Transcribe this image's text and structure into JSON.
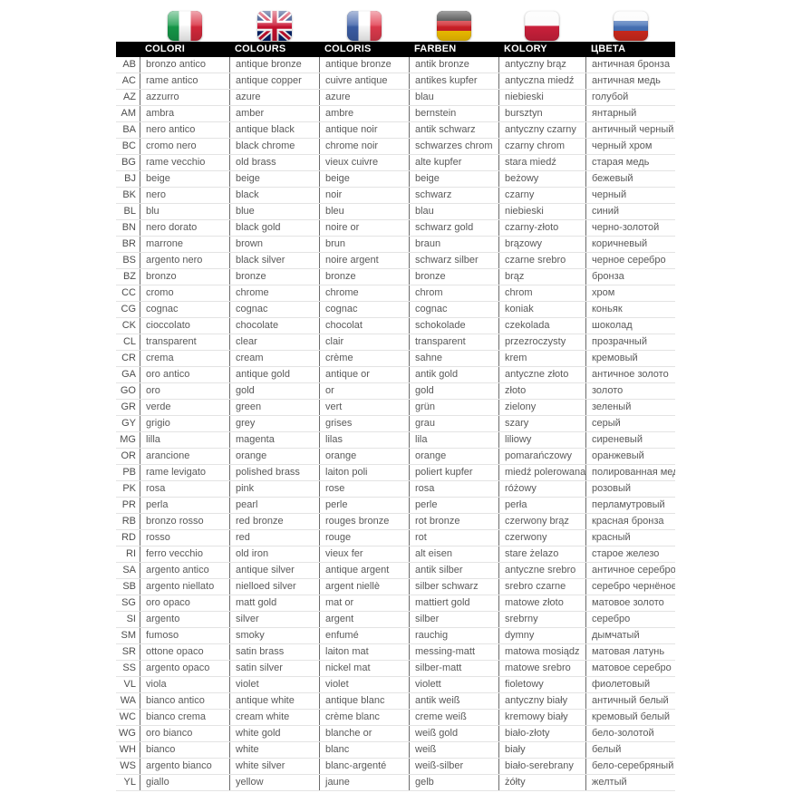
{
  "colors": {
    "header_bg": "#000000",
    "header_text": "#ffffff",
    "cell_text": "#595959",
    "code_text": "#4d4d4d",
    "divider": "#6b6b6b",
    "row_line": "#e3e3e3"
  },
  "flags": [
    {
      "id": "italy",
      "icon": "italy-flag-icon",
      "direction": "vertical",
      "colors": [
        "#169b4a",
        "#ffffff",
        "#d8293c"
      ]
    },
    {
      "id": "uk",
      "icon": "uk-flag-icon",
      "direction": "union-jack",
      "colors": [
        "#012169",
        "#ffffff",
        "#C8102E"
      ]
    },
    {
      "id": "france",
      "icon": "france-flag-icon",
      "direction": "vertical",
      "colors": [
        "#3c5fa8",
        "#ffffff",
        "#e23b4e"
      ]
    },
    {
      "id": "germany",
      "icon": "germany-flag-icon",
      "direction": "horizontal",
      "colors": [
        "#1a1a1a",
        "#cf2027",
        "#f8c500"
      ]
    },
    {
      "id": "poland",
      "icon": "poland-flag-icon",
      "direction": "horizontal",
      "colors": [
        "#fbfbfb",
        "#d1213d"
      ]
    },
    {
      "id": "russia",
      "icon": "russia-flag-icon",
      "direction": "horizontal",
      "colors": [
        "#fbfbfb",
        "#4873b8",
        "#d52b1e"
      ]
    }
  ],
  "header": {
    "labels": [
      "COLORI",
      "COLOURS",
      "COLORIS",
      "FARBEN",
      "KOLORY",
      "ЦВЕТА"
    ]
  },
  "table": {
    "rows": [
      {
        "code": "AB",
        "it": "bronzo antico",
        "en": "antique bronze",
        "fr": "antique bronze",
        "de": "antik bronze",
        "pl": "antyczny brąz",
        "ru": "античная бронза"
      },
      {
        "code": "AC",
        "it": "rame antico",
        "en": "antique copper",
        "fr": "cuivre antique",
        "de": "antikes kupfer",
        "pl": "antyczna miedź",
        "ru": "античная медь"
      },
      {
        "code": "AZ",
        "it": "azzurro",
        "en": "azure",
        "fr": "azure",
        "de": "blau",
        "pl": "niebieski",
        "ru": "голубой"
      },
      {
        "code": "AM",
        "it": "ambra",
        "en": "amber",
        "fr": "ambre",
        "de": "bernstein",
        "pl": "bursztyn",
        "ru": "янтарный"
      },
      {
        "code": "BA",
        "it": "nero antico",
        "en": "antique black",
        "fr": "antique noir",
        "de": "antik schwarz",
        "pl": "antyczny czarny",
        "ru": "античный черный"
      },
      {
        "code": "BC",
        "it": "cromo nero",
        "en": "black chrome",
        "fr": "chrome noir",
        "de": "schwarzes chrom",
        "pl": "czarny chrom",
        "ru": "черный хром"
      },
      {
        "code": "BG",
        "it": "rame vecchio",
        "en": "old brass",
        "fr": "vieux cuivre",
        "de": "alte kupfer",
        "pl": "stara miedź",
        "ru": "старая медь"
      },
      {
        "code": "BJ",
        "it": "beige",
        "en": "beige",
        "fr": "beige",
        "de": "beige",
        "pl": "beżowy",
        "ru": "бежевый"
      },
      {
        "code": "BK",
        "it": "nero",
        "en": "black",
        "fr": "noir",
        "de": "schwarz",
        "pl": "czarny",
        "ru": "черный"
      },
      {
        "code": "BL",
        "it": "blu",
        "en": "blue",
        "fr": "bleu",
        "de": "blau",
        "pl": "niebieski",
        "ru": "синий"
      },
      {
        "code": "BN",
        "it": "nero dorato",
        "en": "black gold",
        "fr": "noire or",
        "de": "schwarz gold",
        "pl": "czarny-złoto",
        "ru": "черно-золотой"
      },
      {
        "code": "BR",
        "it": "marrone",
        "en": "brown",
        "fr": "brun",
        "de": "braun",
        "pl": "brązowy",
        "ru": "коричневый"
      },
      {
        "code": "BS",
        "it": "argento nero",
        "en": "black silver",
        "fr": "noire argent",
        "de": "schwarz silber",
        "pl": "czarne srebro",
        "ru": "черное серебро"
      },
      {
        "code": "BZ",
        "it": "bronzo",
        "en": "bronze",
        "fr": "bronze",
        "de": "bronze",
        "pl": "brąz",
        "ru": "бронза"
      },
      {
        "code": "CC",
        "it": "cromo",
        "en": "chrome",
        "fr": "chrome",
        "de": "chrom",
        "pl": "chrom",
        "ru": "хром"
      },
      {
        "code": "CG",
        "it": "cognac",
        "en": "cognac",
        "fr": "cognac",
        "de": "cognac",
        "pl": "koniak",
        "ru": "коньяк"
      },
      {
        "code": "CK",
        "it": "cioccolato",
        "en": "chocolate",
        "fr": "chocolat",
        "de": "schokolade",
        "pl": "czekolada",
        "ru": "шоколад"
      },
      {
        "code": "CL",
        "it": "transparent",
        "en": "clear",
        "fr": "clair",
        "de": "transparent",
        "pl": "przezroczysty",
        "ru": "прозрачный"
      },
      {
        "code": "CR",
        "it": "crema",
        "en": "cream",
        "fr": "crème",
        "de": "sahne",
        "pl": "krem",
        "ru": "кремовый"
      },
      {
        "code": "GA",
        "it": "oro antico",
        "en": "antique gold",
        "fr": "antique or",
        "de": "antik gold",
        "pl": "antyczne złoto",
        "ru": "античное золото"
      },
      {
        "code": "GO",
        "it": "oro",
        "en": "gold",
        "fr": "or",
        "de": "gold",
        "pl": "złoto",
        "ru": "золото"
      },
      {
        "code": "GR",
        "it": "verde",
        "en": "green",
        "fr": "vert",
        "de": "grün",
        "pl": "zielony",
        "ru": "зеленый"
      },
      {
        "code": "GY",
        "it": "grigio",
        "en": "grey",
        "fr": "grises",
        "de": "grau",
        "pl": "szary",
        "ru": "серый"
      },
      {
        "code": "MG",
        "it": "lilla",
        "en": "magenta",
        "fr": "lilas",
        "de": "lila",
        "pl": "liliowy",
        "ru": "сиреневый"
      },
      {
        "code": "OR",
        "it": "arancione",
        "en": "orange",
        "fr": "orange",
        "de": "orange",
        "pl": "pomarańczowy",
        "ru": "оранжевый"
      },
      {
        "code": "PB",
        "it": "rame levigato",
        "en": "polished brass",
        "fr": "laiton poli",
        "de": "poliert kupfer",
        "pl": "miedź polerowana",
        "ru": "полированная медь"
      },
      {
        "code": "PK",
        "it": "rosa",
        "en": "pink",
        "fr": "rose",
        "de": "rosa",
        "pl": "różowy",
        "ru": "розовый"
      },
      {
        "code": "PR",
        "it": "perla",
        "en": "pearl",
        "fr": "perle",
        "de": "perle",
        "pl": "perła",
        "ru": "перламутровый"
      },
      {
        "code": "RB",
        "it": "bronzo rosso",
        "en": "red bronze",
        "fr": "rouges bronze",
        "de": "rot bronze",
        "pl": "czerwony brąz",
        "ru": "красная бронза"
      },
      {
        "code": "RD",
        "it": "rosso",
        "en": "red",
        "fr": "rouge",
        "de": "rot",
        "pl": "czerwony",
        "ru": "красный"
      },
      {
        "code": "RI",
        "it": "ferro vecchio",
        "en": "old iron",
        "fr": "vieux fer",
        "de": "alt eisen",
        "pl": "stare żelazo",
        "ru": "старое железо"
      },
      {
        "code": "SA",
        "it": "argento antico",
        "en": "antique silver",
        "fr": "antique argent",
        "de": "antik silber",
        "pl": "antyczne srebro",
        "ru": "античное серебро"
      },
      {
        "code": "SB",
        "it": "argento niellato",
        "en": "nielloed silver",
        "fr": "argent niellè",
        "de": "silber schwarz",
        "pl": "srebro czarne",
        "ru": "серебро чернёное"
      },
      {
        "code": "SG",
        "it": "oro opaco",
        "en": "matt gold",
        "fr": "mat or",
        "de": "mattiert gold",
        "pl": "matowe złoto",
        "ru": "матовое золото"
      },
      {
        "code": "SI",
        "it": "argento",
        "en": "silver",
        "fr": "argent",
        "de": "silber",
        "pl": "srebrny",
        "ru": "серебро"
      },
      {
        "code": "SM",
        "it": "fumoso",
        "en": "smoky",
        "fr": "enfumé",
        "de": "rauchig",
        "pl": "dymny",
        "ru": "дымчатый"
      },
      {
        "code": "SR",
        "it": "ottone opaco",
        "en": "satin brass",
        "fr": "laiton mat",
        "de": "messing-matt",
        "pl": "matowa mosiądz",
        "ru": "матовая латунь"
      },
      {
        "code": "SS",
        "it": "argento opaco",
        "en": "satin silver",
        "fr": "nickel mat",
        "de": "silber-matt",
        "pl": "matowe srebro",
        "ru": "матовое серебро"
      },
      {
        "code": "VL",
        "it": "viola",
        "en": "violet",
        "fr": "violet",
        "de": "violett",
        "pl": "fioletowy",
        "ru": "фиолетовый"
      },
      {
        "code": "WA",
        "it": "bianco antico",
        "en": "antique white",
        "fr": "antique blanc",
        "de": "antik weiß",
        "pl": "antyczny biały",
        "ru": "античный белый"
      },
      {
        "code": "WC",
        "it": "bianco crema",
        "en": "cream white",
        "fr": "crème blanc",
        "de": "creme weiß",
        "pl": "kremowy biały",
        "ru": "кремовый белый"
      },
      {
        "code": "WG",
        "it": "oro bianco",
        "en": "white gold",
        "fr": "blanche or",
        "de": "weiß gold",
        "pl": "biało-złoty",
        "ru": "бело-золотой"
      },
      {
        "code": "WH",
        "it": "bianco",
        "en": "white",
        "fr": "blanc",
        "de": "weiß",
        "pl": "biały",
        "ru": "белый"
      },
      {
        "code": "WS",
        "it": "argento bianco",
        "en": "white silver",
        "fr": "blanc-argenté",
        "de": "weiß-silber",
        "pl": "biało-serebrany",
        "ru": "бело-серебряный"
      },
      {
        "code": "YL",
        "it": "giallo",
        "en": "yellow",
        "fr": "jaune",
        "de": "gelb",
        "pl": "żółty",
        "ru": "желтый"
      }
    ]
  }
}
